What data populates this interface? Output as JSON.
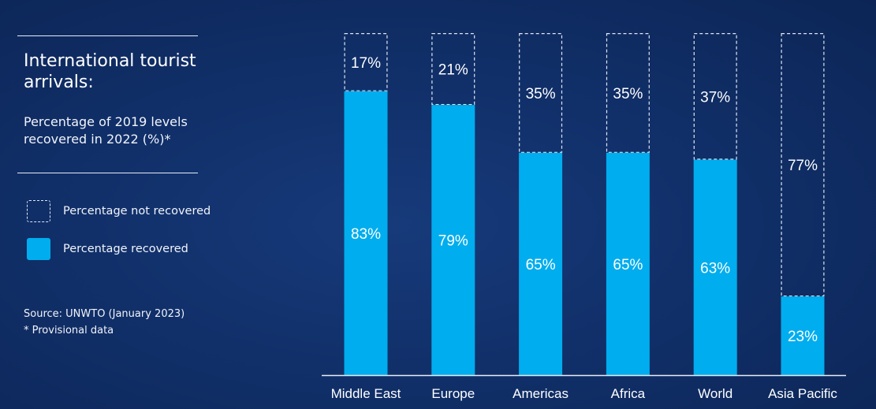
{
  "panel": {
    "title": "International tourist arrivals:",
    "subtitle": "Percentage of 2019 levels recovered in 2022 (%)*",
    "legend": [
      {
        "label": "Percentage not recovered",
        "style": "dashed"
      },
      {
        "label": "Percentage recovered",
        "style": "solid"
      }
    ],
    "source": "Source: UNWTO (January 2023)",
    "footnote": "* Provisional data"
  },
  "colors": {
    "background": "#11306a",
    "recovered": "#00adee",
    "not_recovered_border": "#dfe6f2",
    "text": "#ffffff"
  },
  "chart_data": {
    "type": "bar",
    "stacked": true,
    "categories": [
      "Middle East",
      "Europe",
      "Americas",
      "Africa",
      "World",
      "Asia Pacific"
    ],
    "series": [
      {
        "name": "Percentage recovered",
        "values": [
          83,
          79,
          65,
          65,
          63,
          23
        ],
        "labels": [
          "83%",
          "79%",
          "65%",
          "65%",
          "63%",
          "23%"
        ]
      },
      {
        "name": "Percentage not recovered",
        "values": [
          17,
          21,
          35,
          35,
          37,
          77
        ],
        "labels": [
          "17%",
          "21%",
          "35%",
          "35%",
          "37%",
          "77%"
        ]
      }
    ],
    "ylim": [
      0,
      100
    ],
    "grid": false,
    "legend_position": "left"
  }
}
